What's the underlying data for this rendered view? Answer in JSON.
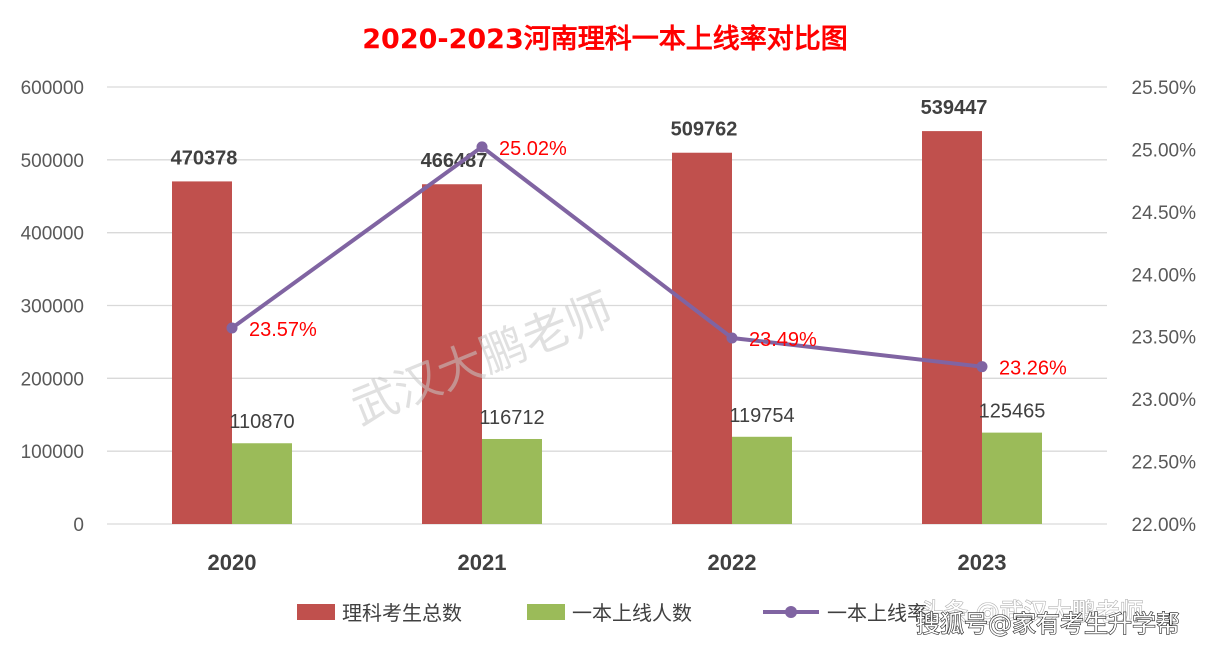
{
  "chart_data": {
    "type": "bar",
    "title": "2020-2023河南理科一本上线率对比图",
    "categories": [
      "2020",
      "2021",
      "2022",
      "2023"
    ],
    "series": [
      {
        "name": "理科考生总数",
        "kind": "bar",
        "axis": "left",
        "color": "#c0504d",
        "values": [
          470378,
          466487,
          509762,
          539447
        ],
        "labels": [
          "470378",
          "466487",
          "509762",
          "539447"
        ]
      },
      {
        "name": "一本上线人数",
        "kind": "bar",
        "axis": "left",
        "color": "#9bbb59",
        "values": [
          110870,
          116712,
          119754,
          125465
        ],
        "labels": [
          "110870",
          "116712",
          "119754",
          "125465"
        ]
      },
      {
        "name": "一本上线率",
        "kind": "line",
        "axis": "right",
        "color": "#8064a2",
        "values": [
          23.57,
          25.02,
          23.49,
          23.26
        ],
        "labels": [
          "23.57%",
          "25.02%",
          "23.49%",
          "23.26%"
        ]
      }
    ],
    "y_left": {
      "ylim": [
        0,
        600000
      ],
      "ticks": [
        "0",
        "100000",
        "200000",
        "300000",
        "400000",
        "500000",
        "600000"
      ]
    },
    "y_right": {
      "ylim": [
        22.0,
        25.5
      ],
      "ticks": [
        "22.00%",
        "22.50%",
        "23.00%",
        "23.50%",
        "24.00%",
        "24.50%",
        "25.00%",
        "25.50%"
      ]
    },
    "grid": true,
    "legend_position": "bottom"
  },
  "watermarks": {
    "center": "武汉大鹏老师",
    "corner": "搜狐号@家有考生升学帮",
    "corner_behind": "头条 @武汉大鹏老师"
  }
}
